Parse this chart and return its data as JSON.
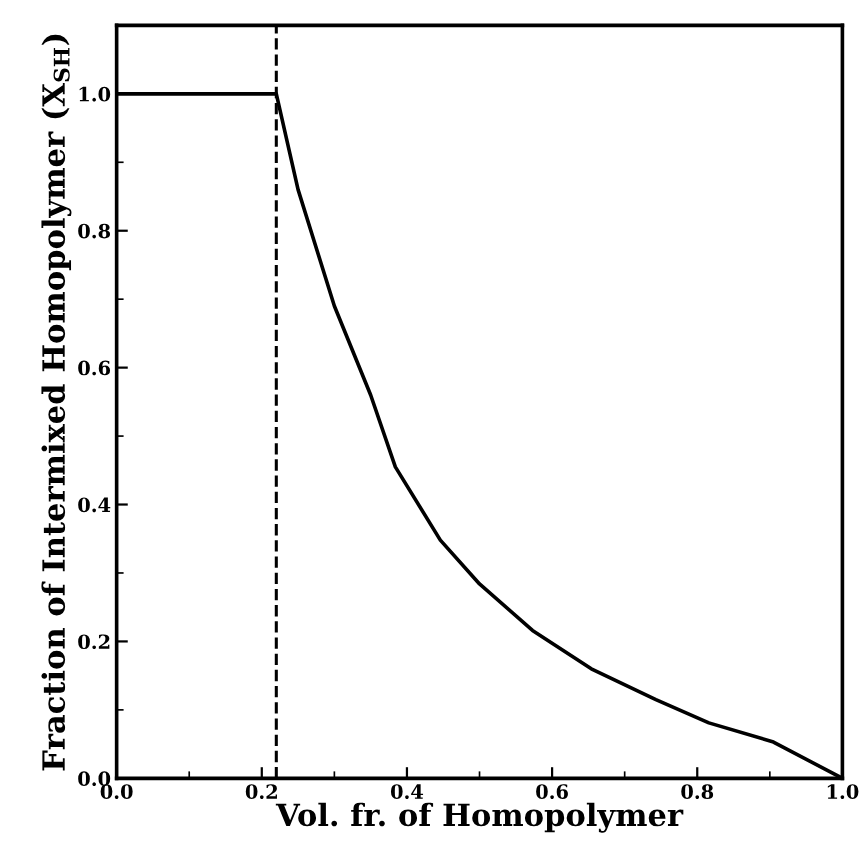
{
  "chart_data": {
    "type": "line",
    "xlabel": "Vol. fr. of Homopolymer",
    "ylabel": "Fraction of Intermixed Homopolymer (X$_{SH}$)",
    "series": [
      {
        "color": "#000000",
        "x": [
          0.0,
          0.22,
          0.25,
          0.3,
          0.35,
          0.384,
          0.446,
          0.5,
          0.573,
          0.654,
          0.743,
          0.816,
          0.905,
          1.0
        ],
        "values": [
          1.0,
          1.0,
          0.86,
          0.69,
          0.56,
          0.455,
          0.348,
          0.284,
          0.216,
          0.16,
          0.115,
          0.081,
          0.053,
          0.0
        ]
      }
    ],
    "xlim": [
      0.0,
      1.0
    ],
    "ylim": [
      0.0,
      1.1
    ],
    "xticks": [
      {
        "value": 0.0,
        "label": "0.0"
      },
      0.2,
      0.4,
      0.6,
      0.8,
      {
        "value": 1.0,
        "label": "1.0"
      }
    ],
    "yticks": [
      {
        "value": 0.0,
        "label": "0.0"
      },
      0.2,
      0.4,
      0.6,
      0.8,
      {
        "value": 1.0,
        "label": "1.0"
      }
    ],
    "ref_lines": [
      {
        "axis": "x",
        "value": 0.22,
        "color": "#000000",
        "line_style": "dashed"
      }
    ],
    "grid": false,
    "marker": "none",
    "line_style": "solid"
  }
}
